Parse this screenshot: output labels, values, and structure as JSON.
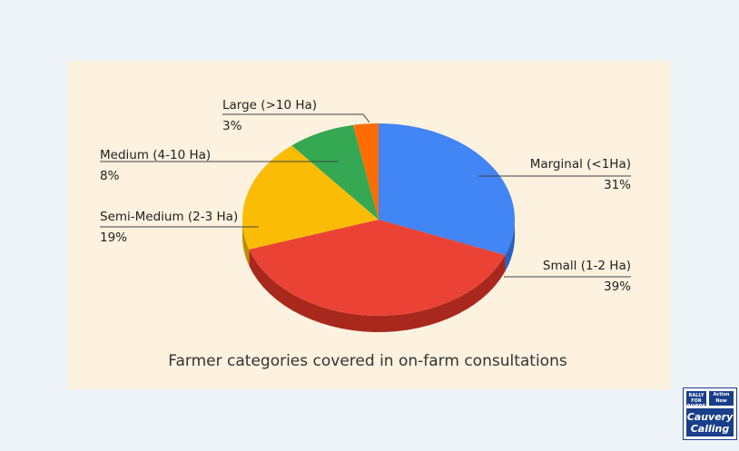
{
  "chart_data": {
    "type": "pie",
    "title": "Farmer categories covered in on-farm consultations",
    "slices": [
      {
        "label": "Marginal (<1Ha)",
        "value": 31,
        "value_label": "31%",
        "color": "#4285f4",
        "dark": "#2a5fbf"
      },
      {
        "label": "Small (1-2 Ha)",
        "value": 39,
        "value_label": "39%",
        "color": "#ea4335",
        "dark": "#a8281e"
      },
      {
        "label": "Semi-Medium (2-3 Ha)",
        "value": 19,
        "value_label": "19%",
        "color": "#fbbc05",
        "dark": "#c08d00"
      },
      {
        "label": "Medium (4-10 Ha)",
        "value": 8,
        "value_label": "8%",
        "color": "#34a853",
        "dark": "#237a3a"
      },
      {
        "label": "Large (>10 Ha)",
        "value": 3,
        "value_label": "3%",
        "color": "#ff6d01",
        "dark": "#c04f00"
      }
    ]
  },
  "logo": {
    "line1": "RALLY FOR RIVERS",
    "line2": "Action Now",
    "main": "Cauvery Calling"
  }
}
